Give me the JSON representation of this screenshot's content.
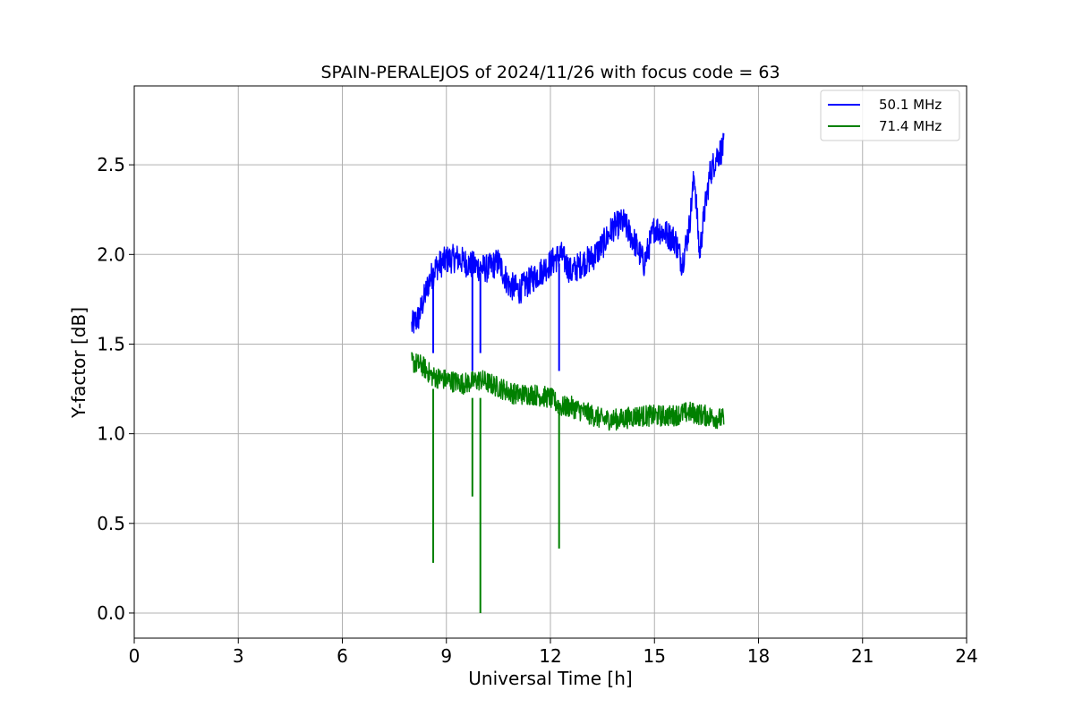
{
  "chart_data": {
    "type": "line",
    "title": "SPAIN-PERALEJOS of 2024/11/26 with focus code = 63",
    "xlabel": "Universal Time [h]",
    "ylabel": "Y-factor [dB]",
    "xlim": [
      0,
      24
    ],
    "ylim": [
      -0.14,
      2.94
    ],
    "xticks": [
      0,
      3,
      6,
      9,
      12,
      15,
      18,
      21,
      24
    ],
    "xtick_labels": [
      "0",
      "3",
      "6",
      "9",
      "12",
      "15",
      "18",
      "21",
      "24"
    ],
    "yticks": [
      0.0,
      0.5,
      1.0,
      1.5,
      2.0,
      2.5
    ],
    "ytick_labels": [
      "0.0",
      "0.5",
      "1.0",
      "1.5",
      "2.0",
      "2.5"
    ],
    "grid": true,
    "legend_position": "top-right",
    "series": [
      {
        "name": "50.1 MHz",
        "color": "#0000ff",
        "noise": 0.08,
        "x": [
          8.0,
          8.2,
          8.35,
          8.5,
          8.7,
          9.0,
          9.3,
          9.6,
          9.9,
          10.2,
          10.5,
          10.8,
          11.1,
          11.4,
          11.7,
          12.0,
          12.3,
          12.6,
          12.9,
          13.2,
          13.5,
          13.8,
          14.1,
          14.4,
          14.7,
          15.0,
          15.3,
          15.6,
          15.8,
          16.0,
          16.15,
          16.3,
          16.45,
          16.6,
          16.8,
          17.0
        ],
        "y": [
          1.6,
          1.65,
          1.75,
          1.85,
          1.93,
          1.97,
          1.98,
          1.95,
          1.93,
          1.92,
          1.96,
          1.83,
          1.8,
          1.85,
          1.9,
          1.95,
          2.0,
          1.9,
          1.95,
          1.98,
          2.05,
          2.15,
          2.18,
          2.08,
          1.95,
          2.15,
          2.12,
          2.08,
          1.95,
          2.15,
          2.45,
          2.0,
          2.25,
          2.45,
          2.55,
          2.6
        ]
      },
      {
        "name": "71.4 MHz",
        "color": "#008000",
        "noise": 0.06,
        "x": [
          8.0,
          8.3,
          8.6,
          9.0,
          9.5,
          10.0,
          10.5,
          11.0,
          11.5,
          12.0,
          12.3,
          12.6,
          13.0,
          13.5,
          14.0,
          14.5,
          15.0,
          15.5,
          16.0,
          16.5,
          17.0
        ],
        "y": [
          1.4,
          1.38,
          1.32,
          1.3,
          1.28,
          1.3,
          1.26,
          1.22,
          1.22,
          1.2,
          1.15,
          1.15,
          1.12,
          1.08,
          1.08,
          1.1,
          1.1,
          1.1,
          1.12,
          1.1,
          1.08
        ]
      }
    ],
    "dips": [
      {
        "x": 8.62,
        "y1": 1.25,
        "y2": 0.28
      },
      {
        "x": 9.75,
        "y1": 1.2,
        "y2": 0.65
      },
      {
        "x": 9.98,
        "y1": 1.2,
        "y2": 0.0
      },
      {
        "x": 12.25,
        "y1": 1.12,
        "y2": 0.36
      },
      {
        "x": 8.62,
        "y1": 1.92,
        "y2": 1.45
      },
      {
        "x": 9.75,
        "y1": 1.9,
        "y2": 1.35
      },
      {
        "x": 9.98,
        "y1": 1.9,
        "y2": 1.45
      },
      {
        "x": 12.25,
        "y1": 1.95,
        "y2": 1.35
      }
    ],
    "dip_colors": [
      "#008000",
      "#008000",
      "#008000",
      "#008000",
      "#0000ff",
      "#0000ff",
      "#0000ff",
      "#0000ff"
    ]
  }
}
